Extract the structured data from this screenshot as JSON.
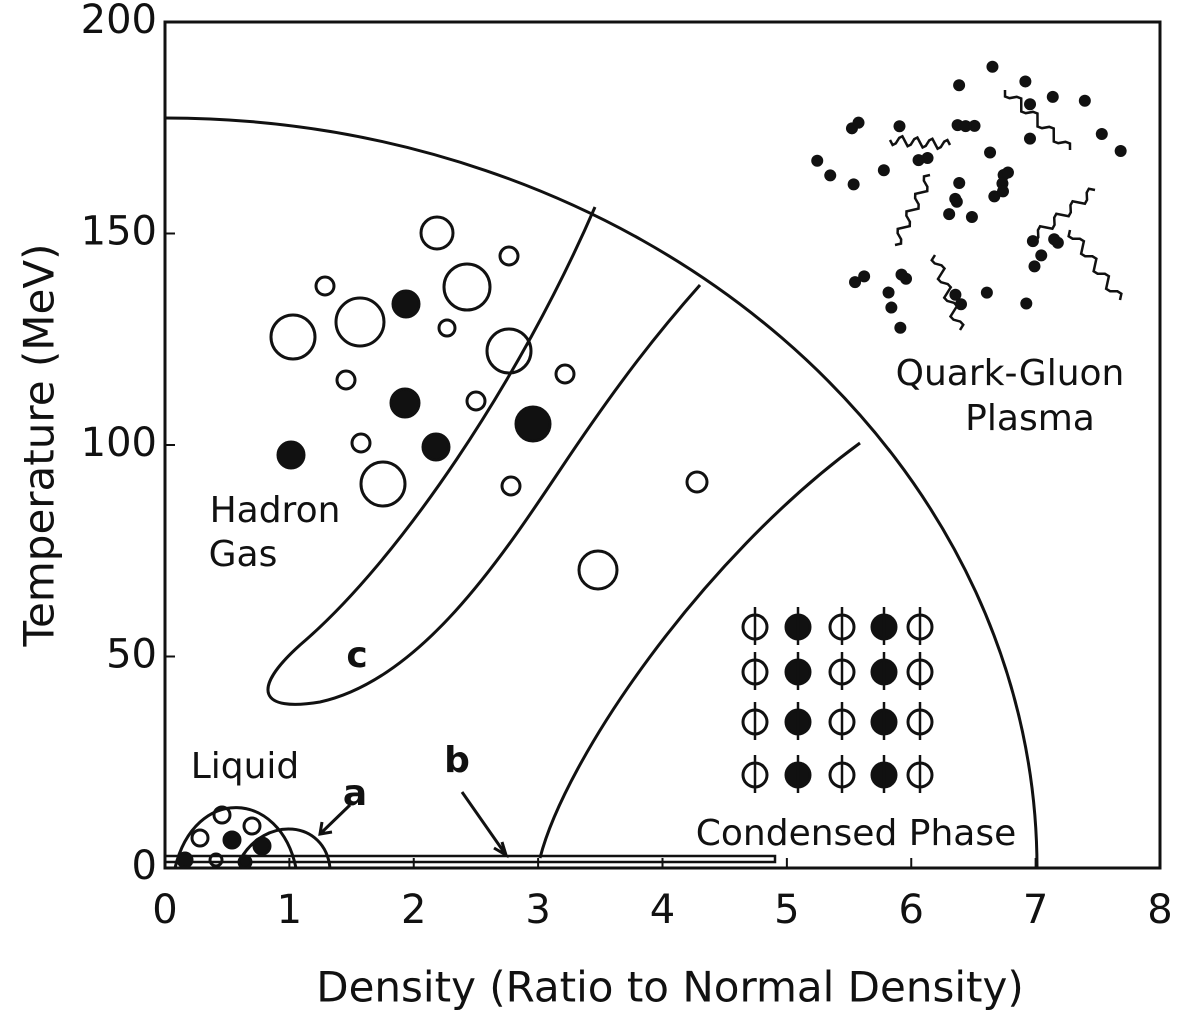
{
  "chart_data": {
    "type": "phase",
    "xlabel": "Density (Ratio to Normal Density)",
    "ylabel": "Temperature (MeV)",
    "xlim": [
      0,
      8
    ],
    "xticks": [
      0,
      1,
      2,
      3,
      4,
      5,
      6,
      7,
      8
    ],
    "ylim": [
      0,
      200
    ],
    "yticks": [
      0,
      50,
      100,
      150,
      200
    ],
    "annotations": {
      "qgp": [
        "Quark-Gluon",
        "Plasma"
      ],
      "hadron": [
        "Hadron",
        "Gas"
      ],
      "liquid": "Liquid",
      "condensed": "Condensed Phase",
      "a": "a",
      "b": "b",
      "c": "c"
    }
  }
}
